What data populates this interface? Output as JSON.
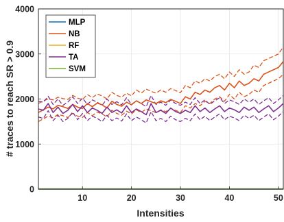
{
  "chart_data": {
    "type": "line",
    "xlabel": "Intensities",
    "ylabel": "# traces to reach SR > 0.9",
    "xlim": [
      1,
      51
    ],
    "ylim": [
      0,
      4000
    ],
    "xticks": [
      10,
      20,
      30,
      40,
      50
    ],
    "xtick_labels": [
      "10",
      "20",
      "30",
      "40",
      "50"
    ],
    "yticks": [
      0,
      1000,
      2000,
      3000,
      4000
    ],
    "ytick_labels": [
      "0",
      "1000",
      "2000",
      "3000",
      "4000"
    ],
    "grid": true,
    "legend_position": "top-left",
    "x": [
      1,
      2,
      3,
      4,
      5,
      6,
      7,
      8,
      9,
      10,
      11,
      12,
      13,
      14,
      15,
      16,
      17,
      18,
      19,
      20,
      21,
      22,
      23,
      24,
      25,
      26,
      27,
      28,
      29,
      30,
      31,
      32,
      33,
      34,
      35,
      36,
      37,
      38,
      39,
      40,
      41,
      42,
      43,
      44,
      45,
      46,
      47,
      48,
      49,
      50,
      51
    ],
    "series": [
      {
        "name": "MLP",
        "color": "#0072BD",
        "style": "solid",
        "values": [
          0,
          0,
          0,
          0,
          0,
          0,
          0,
          0,
          0,
          0,
          0,
          0,
          0,
          0,
          0,
          0,
          0,
          0,
          0,
          0,
          0,
          0,
          0,
          0,
          0,
          0,
          0,
          0,
          0,
          0,
          0,
          0,
          0,
          0,
          0,
          0,
          0,
          0,
          0,
          0,
          0,
          0,
          0,
          0,
          0,
          0,
          0,
          0,
          0,
          0,
          0
        ]
      },
      {
        "name": "NB",
        "color": "#D95319",
        "style": "solid",
        "values": [
          1700,
          1760,
          1820,
          1780,
          1860,
          1830,
          1790,
          1880,
          1820,
          1790,
          1900,
          1830,
          1910,
          1870,
          1800,
          1950,
          1880,
          1840,
          1930,
          1870,
          1960,
          1900,
          1980,
          1940,
          1900,
          1960,
          1920,
          1990,
          1950,
          1900,
          2050,
          2000,
          2150,
          2100,
          2200,
          2150,
          2250,
          2300,
          2200,
          2350,
          2250,
          2400,
          2300,
          2350,
          2450,
          2400,
          2550,
          2600,
          2650,
          2700,
          2830
        ]
      },
      {
        "name": "NB upper",
        "color": "#D95319",
        "style": "dashed",
        "values": [
          1900,
          1960,
          2000,
          1980,
          2040,
          2010,
          1990,
          2080,
          2020,
          1990,
          2100,
          2030,
          2110,
          2070,
          2000,
          2150,
          2080,
          2040,
          2130,
          2070,
          2200,
          2130,
          2220,
          2170,
          2130,
          2200,
          2150,
          2230,
          2190,
          2140,
          2300,
          2250,
          2400,
          2350,
          2450,
          2400,
          2500,
          2550,
          2450,
          2600,
          2500,
          2650,
          2550,
          2600,
          2750,
          2700,
          2850,
          2900,
          2950,
          3000,
          3150
        ]
      },
      {
        "name": "NB lower",
        "color": "#D95319",
        "style": "dashed",
        "values": [
          1500,
          1560,
          1620,
          1580,
          1660,
          1630,
          1590,
          1680,
          1620,
          1590,
          1700,
          1630,
          1710,
          1670,
          1600,
          1750,
          1680,
          1640,
          1730,
          1670,
          1760,
          1700,
          1780,
          1740,
          1700,
          1760,
          1720,
          1790,
          1750,
          1700,
          1850,
          1800,
          1900,
          1850,
          1950,
          1900,
          2000,
          2050,
          1950,
          2100,
          2000,
          2150,
          2050,
          2100,
          2200,
          2150,
          2300,
          2350,
          2400,
          2450,
          2550
        ]
      },
      {
        "name": "RF",
        "color": "#EDB120",
        "style": "solid",
        "values": [
          5,
          5,
          5,
          5,
          5,
          5,
          5,
          5,
          5,
          5,
          5,
          5,
          5,
          5,
          5,
          5,
          5,
          5,
          5,
          5,
          5,
          5,
          5,
          5,
          5,
          5,
          5,
          5,
          5,
          5,
          5,
          5,
          5,
          5,
          5,
          5,
          5,
          5,
          5,
          5,
          5,
          5,
          5,
          5,
          5,
          5,
          5,
          5,
          5,
          5,
          5
        ]
      },
      {
        "name": "TA",
        "color": "#7E2F8E",
        "style": "solid",
        "values": [
          1780,
          1750,
          1900,
          1700,
          1820,
          1680,
          1750,
          1880,
          1720,
          1850,
          1700,
          1800,
          1750,
          1680,
          1820,
          1700,
          1760,
          1690,
          1850,
          1700,
          1780,
          1720,
          1650,
          1900,
          1700,
          1750,
          1680,
          1800,
          1720,
          1680,
          1750,
          1700,
          1850,
          1720,
          1800,
          1700,
          1780,
          1850,
          1720,
          1800,
          1760,
          1700,
          1820,
          1750,
          1820,
          1700,
          1780,
          1850,
          1720,
          1800,
          1900
        ]
      },
      {
        "name": "TA upper",
        "color": "#7E2F8E",
        "style": "dashed",
        "values": [
          1950,
          1930,
          2060,
          1880,
          2000,
          1860,
          1930,
          2050,
          1900,
          2020,
          1880,
          1980,
          1930,
          1860,
          2000,
          1880,
          1940,
          1870,
          2030,
          1880,
          1960,
          1900,
          1830,
          2080,
          1880,
          1930,
          1860,
          1980,
          1900,
          1860,
          1930,
          1880,
          2030,
          1900,
          1980,
          1880,
          1960,
          2030,
          1900,
          1980,
          1940,
          1880,
          2000,
          1930,
          2000,
          1880,
          1960,
          2030,
          1900,
          1980,
          2080
        ]
      },
      {
        "name": "TA lower",
        "color": "#7E2F8E",
        "style": "dashed",
        "values": [
          1600,
          1570,
          1740,
          1520,
          1640,
          1500,
          1570,
          1710,
          1540,
          1680,
          1520,
          1620,
          1570,
          1500,
          1640,
          1520,
          1580,
          1510,
          1670,
          1520,
          1600,
          1540,
          1470,
          1720,
          1520,
          1570,
          1500,
          1620,
          1540,
          1500,
          1570,
          1520,
          1670,
          1540,
          1620,
          1520,
          1600,
          1670,
          1540,
          1620,
          1580,
          1520,
          1640,
          1570,
          1640,
          1520,
          1600,
          1670,
          1540,
          1620,
          1720
        ]
      },
      {
        "name": "SVM",
        "color": "#77AC30",
        "style": "solid",
        "values": [
          0,
          0,
          0,
          0,
          0,
          0,
          0,
          0,
          0,
          0,
          0,
          0,
          0,
          0,
          0,
          0,
          0,
          0,
          0,
          0,
          0,
          0,
          0,
          0,
          0,
          0,
          0,
          0,
          0,
          0,
          0,
          0,
          0,
          0,
          0,
          0,
          0,
          0,
          0,
          0,
          0,
          0,
          0,
          0,
          0,
          0,
          0,
          0,
          0,
          0,
          0
        ]
      }
    ],
    "legend": [
      {
        "label": "MLP",
        "color": "#0072BD"
      },
      {
        "label": "NB",
        "color": "#D95319"
      },
      {
        "label": "RF",
        "color": "#EDB120"
      },
      {
        "label": "TA",
        "color": "#7E2F8E"
      },
      {
        "label": "SVM",
        "color": "#77AC30"
      }
    ],
    "frame_color": "#262626",
    "grid_color": "#e6e6e6"
  }
}
